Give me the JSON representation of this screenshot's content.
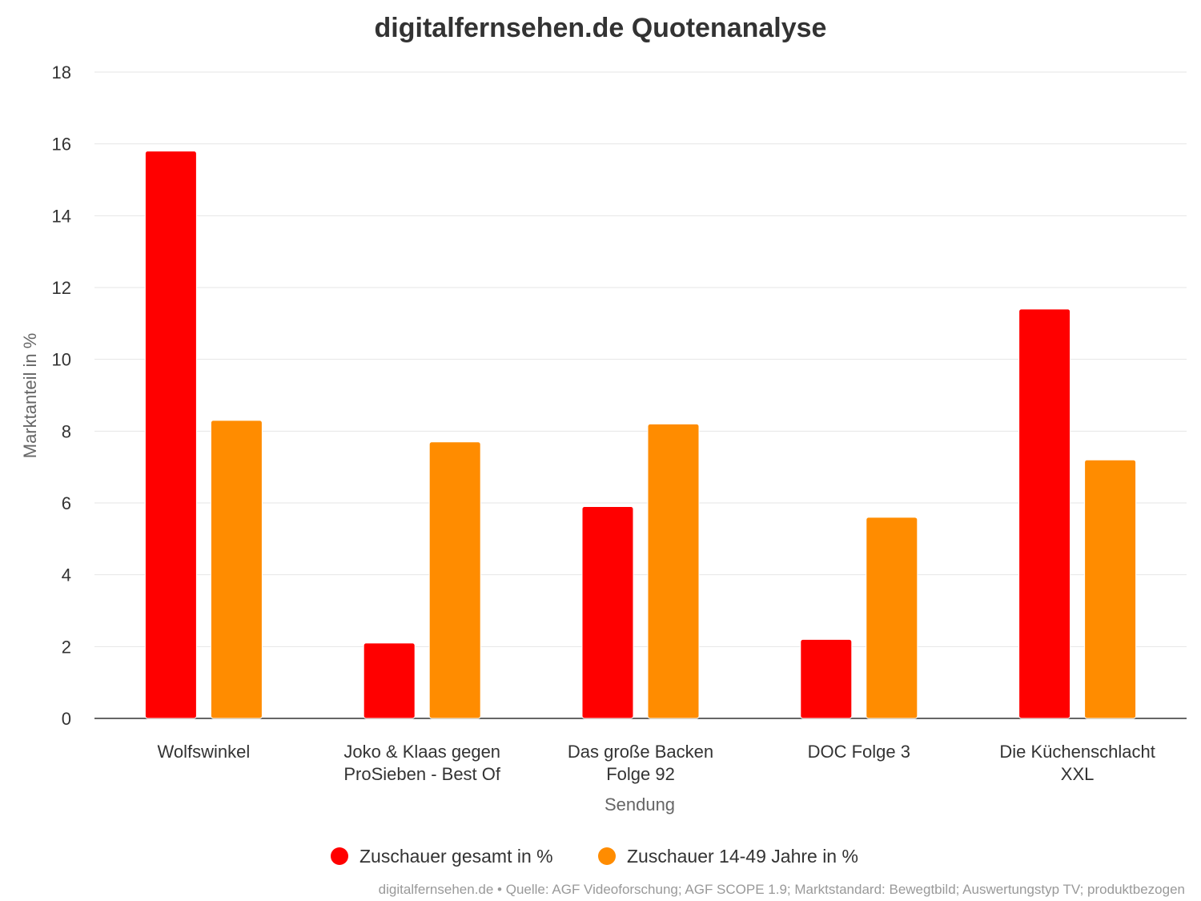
{
  "chart_data": {
    "type": "bar",
    "title": "digitalfernsehen.de Quotenanalyse",
    "xlabel": "Sendung",
    "ylabel": "Marktanteil in %",
    "ylim": [
      0,
      18
    ],
    "yticks": [
      "0",
      "2",
      "4",
      "6",
      "8",
      "10",
      "12",
      "14",
      "16",
      "18"
    ],
    "grid": true,
    "legend_position": "bottom-center",
    "categories": [
      [
        "Wolfswinkel"
      ],
      [
        "Joko & Klaas gegen",
        "ProSieben - Best Of"
      ],
      [
        "Das große Backen",
        "Folge 92"
      ],
      [
        "DOC Folge 3"
      ],
      [
        "Die Küchenschlacht",
        "XXL"
      ]
    ],
    "series": [
      {
        "name": "Zuschauer gesamt in %",
        "color": "#ff0000",
        "values": [
          15.8,
          2.1,
          5.9,
          2.2,
          11.4
        ]
      },
      {
        "name": "Zuschauer 14-49 Jahre in %",
        "color": "#ff8c00",
        "values": [
          8.3,
          7.7,
          8.2,
          5.6,
          7.2
        ]
      }
    ],
    "credits": "digitalfernsehen.de • Quelle: AGF Videoforschung; AGF SCOPE 1.9; Marktstandard: Bewegtbild; Auswertungstyp TV; produktbezogen"
  }
}
